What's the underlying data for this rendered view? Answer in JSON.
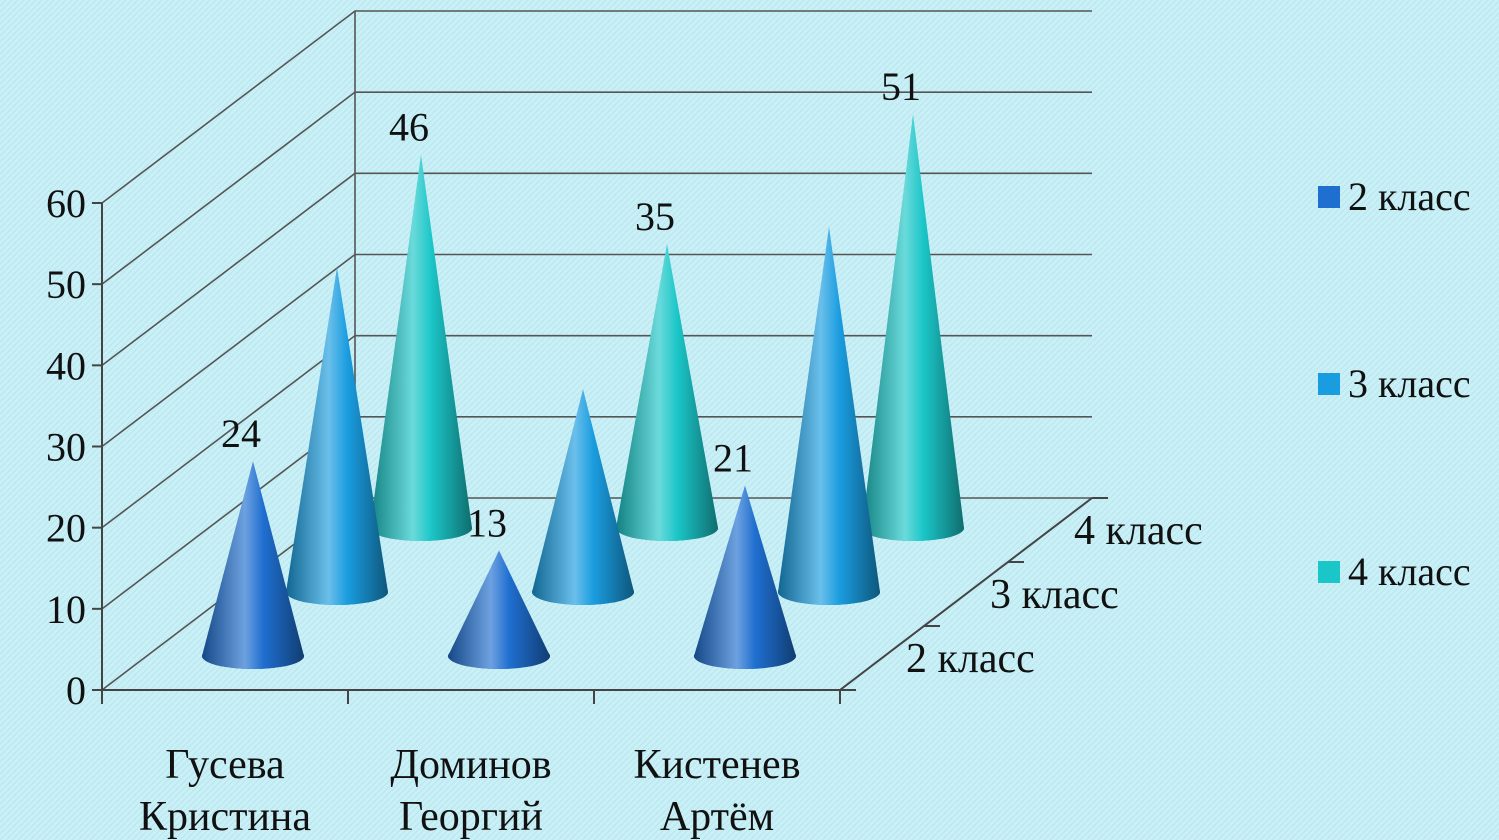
{
  "chart_data": {
    "type": "bar",
    "shape": "3d-cone",
    "categories": [
      "Гусева Кристина",
      "Доминов Георгий",
      "Кистенев Артём"
    ],
    "category_lines": [
      [
        "Гусева",
        "Кристина"
      ],
      [
        "Доминов",
        "Георгий"
      ],
      [
        "Кистенев",
        "Артём"
      ]
    ],
    "depth_labels": [
      "2 класс",
      "3 класс",
      "4 класс"
    ],
    "series": [
      {
        "name": "2 класс",
        "values": [
          24,
          13,
          21
        ],
        "color": "#1f6fd0",
        "labeled": true
      },
      {
        "name": "3 класс",
        "values": [
          40,
          25,
          45
        ],
        "color": "#1a9de0",
        "labeled": false
      },
      {
        "name": "4 класс",
        "values": [
          46,
          35,
          51
        ],
        "color": "#1bc6c8",
        "labeled": true
      }
    ],
    "y_ticks": [
      "0",
      "10",
      "20",
      "30",
      "40",
      "50",
      "60"
    ],
    "ylim": [
      0,
      60
    ],
    "legend": "right",
    "grid": true
  }
}
